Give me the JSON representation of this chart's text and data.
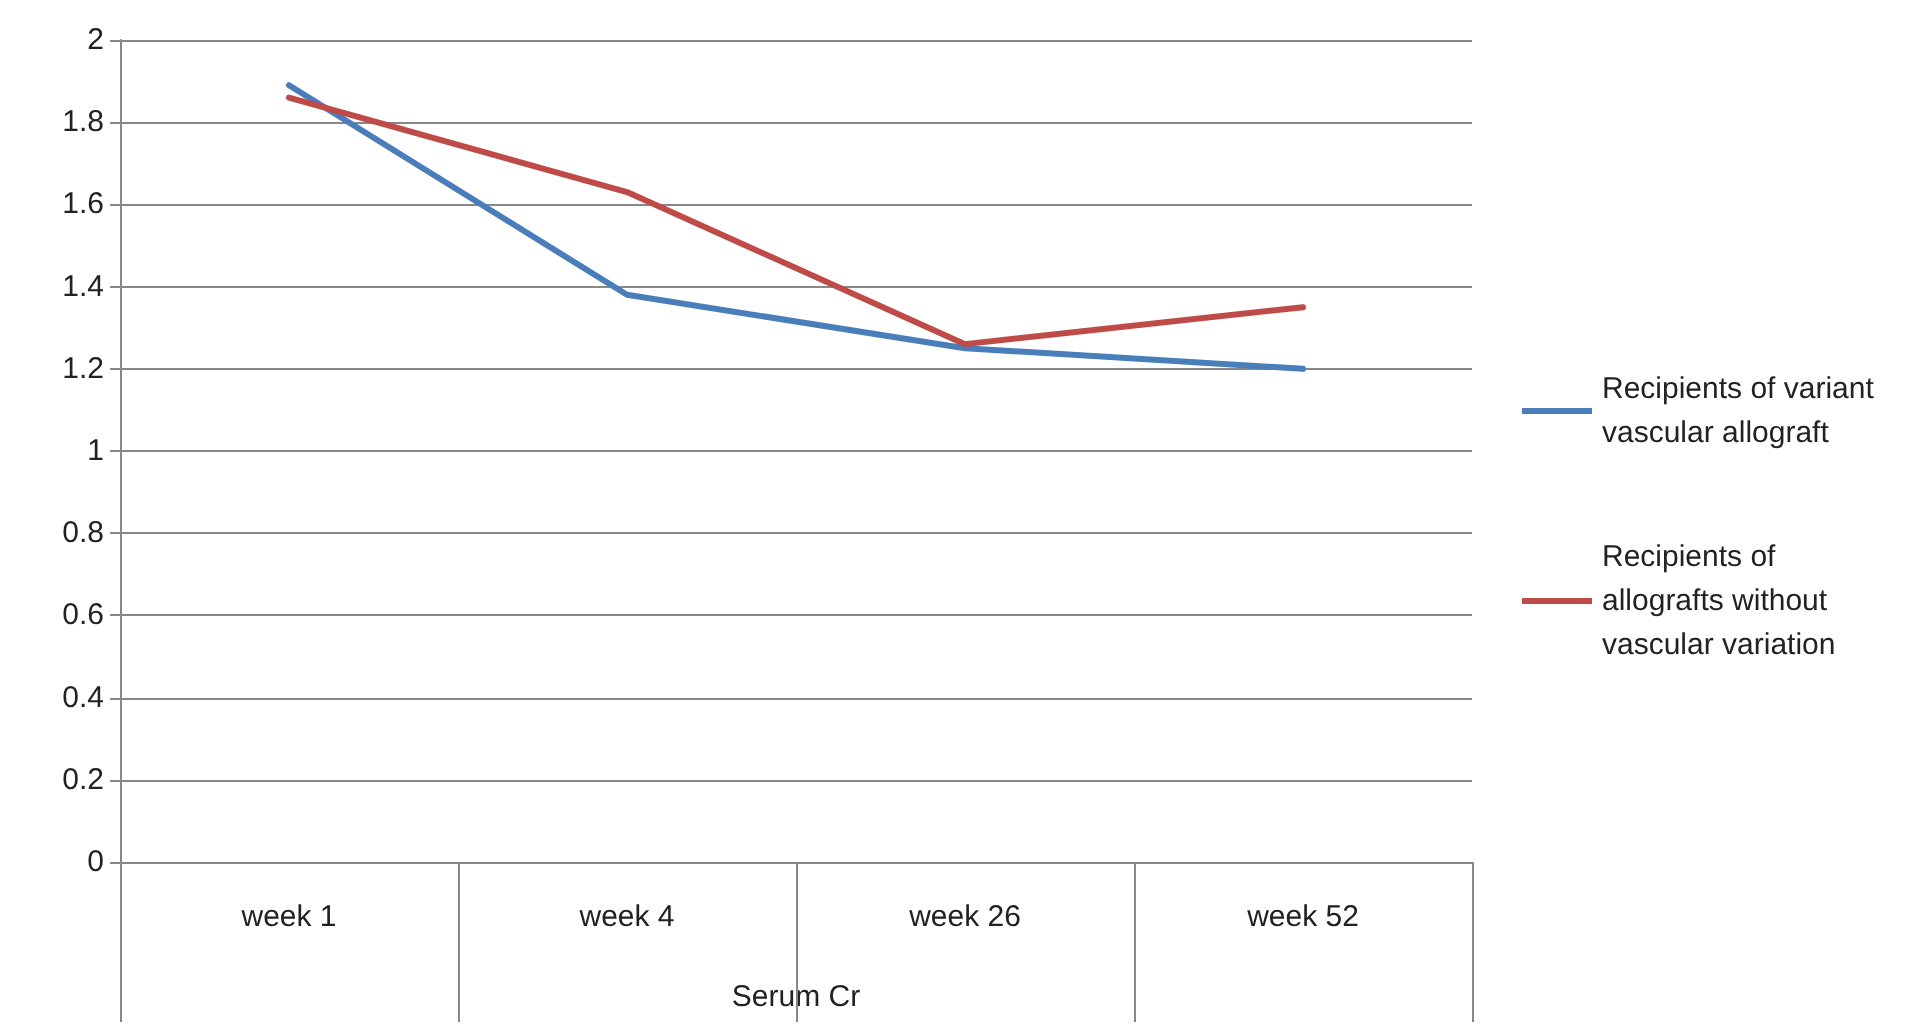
{
  "chart_data": {
    "type": "line",
    "xlabel": "Serum Cr",
    "categories": [
      "week 1",
      "week 4",
      "week 26",
      "week 52"
    ],
    "series": [
      {
        "name": "Recipients of variant vascular allograft",
        "color": "#4a7ebb",
        "values": [
          1.89,
          1.38,
          1.25,
          1.2
        ]
      },
      {
        "name": "Recipients of allografts without vascular variation",
        "color": "#be4b48",
        "values": [
          1.86,
          1.63,
          1.26,
          1.35
        ]
      }
    ],
    "ylim": [
      0,
      2
    ],
    "yticks": [
      0,
      0.2,
      0.4,
      0.6,
      0.8,
      1,
      1.2,
      1.4,
      1.6,
      1.8,
      2
    ],
    "grid": "y",
    "legend": "right",
    "marker": "none",
    "line_style": "solid"
  }
}
